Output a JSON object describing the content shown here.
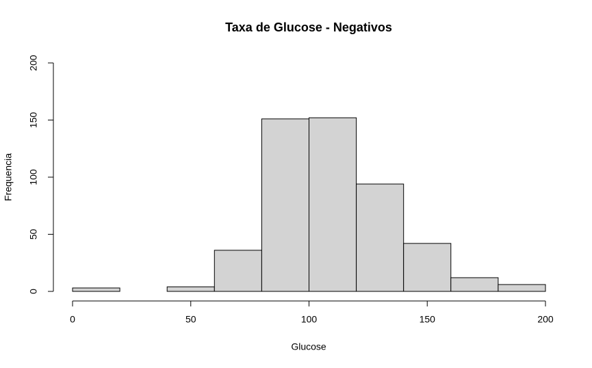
{
  "chart_data": {
    "type": "histogram",
    "title": "Taxa de Glucose - Negativos",
    "x_label": "Glucose",
    "y_label": "Frequencia",
    "bins": [
      0,
      20,
      40,
      60,
      80,
      100,
      120,
      140,
      160,
      180,
      200
    ],
    "counts": [
      3,
      0,
      4,
      36,
      151,
      152,
      94,
      42,
      12,
      6
    ],
    "color": "#d3d3d3",
    "xlim": [
      0,
      200
    ],
    "xticks": [
      0,
      50,
      100,
      150,
      200
    ],
    "ylim": [
      0,
      200
    ],
    "yticks": [
      0,
      50,
      100,
      150,
      200
    ]
  }
}
